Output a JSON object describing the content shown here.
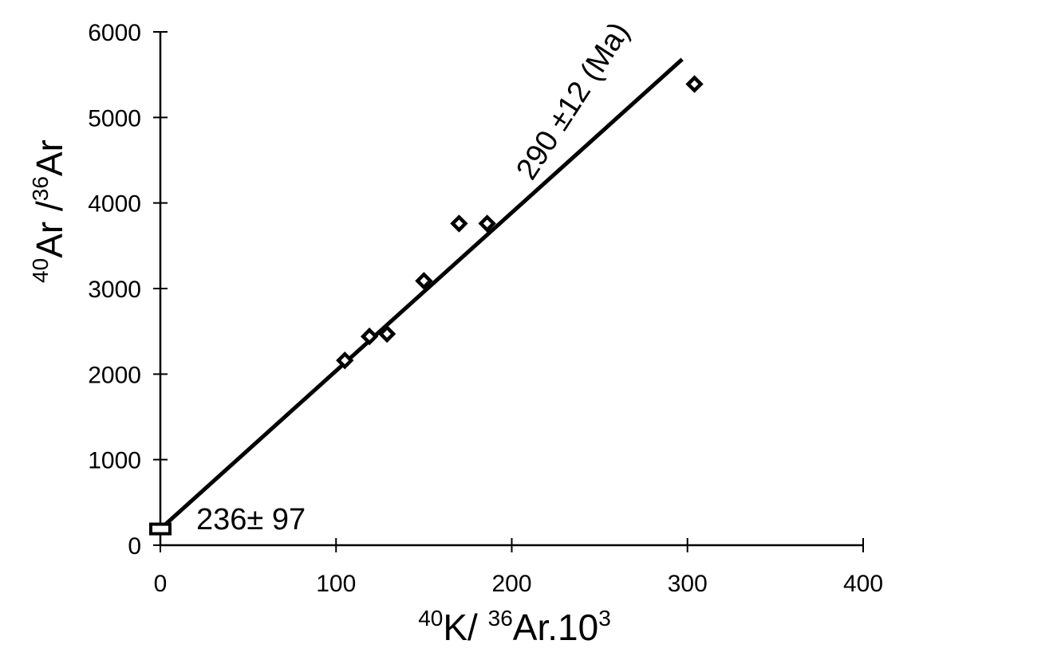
{
  "chart_data": {
    "type": "scatter",
    "title": "",
    "xlabel": {
      "sup1": "40",
      "part1": "K/ ",
      "sup2": "36",
      "part2": "Ar.10",
      "sup3": "3"
    },
    "ylabel": {
      "sup1": "40",
      "part1": "Ar /",
      "sup2": "36",
      "part2": "Ar"
    },
    "xlim": [
      0,
      400
    ],
    "ylim": [
      0,
      6000
    ],
    "xticks": [
      "0",
      "100",
      "200",
      "300",
      "400"
    ],
    "yticks": [
      "0",
      "1000",
      "2000",
      "3000",
      "4000",
      "5000",
      "6000"
    ],
    "grid": false,
    "series": [
      {
        "marker": "diamond",
        "points": [
          {
            "x": 105,
            "y": 2160
          },
          {
            "x": 119,
            "y": 2440
          },
          {
            "x": 129,
            "y": 2470
          },
          {
            "x": 150,
            "y": 3090
          },
          {
            "x": 170,
            "y": 3760
          },
          {
            "x": 186,
            "y": 3760
          },
          {
            "x": 304,
            "y": 5390
          }
        ]
      }
    ],
    "intercept_point": {
      "x": 0,
      "y": 190
    },
    "fit_line": {
      "x": [
        0,
        297
      ],
      "y": [
        190,
        5680
      ]
    },
    "annotations": {
      "intercept_label": "236± 97",
      "slope_label": "290 ±12 (Ma)"
    },
    "colors": {
      "line": "#000000",
      "marker_fill": "#ffffff",
      "background": "#ffffff"
    }
  }
}
